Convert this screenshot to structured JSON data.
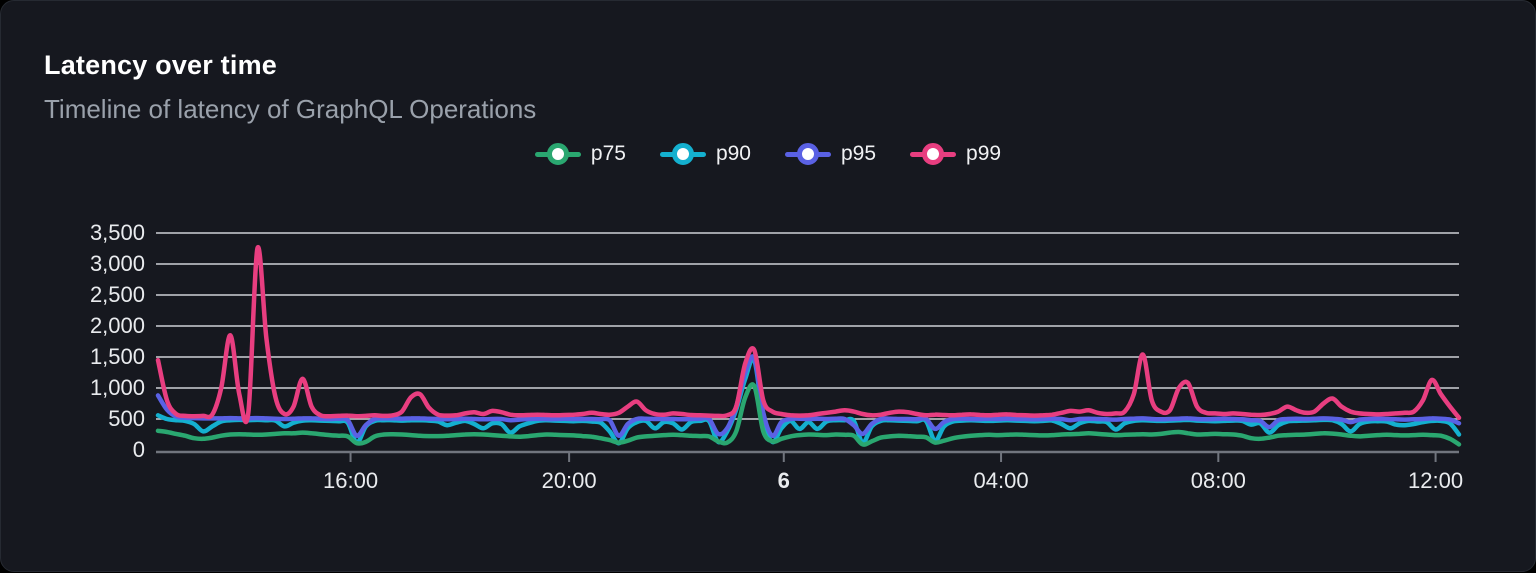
{
  "card": {
    "title": "Latency over time",
    "subtitle": "Timeline of latency of GraphQL Operations"
  },
  "colors": {
    "background": "#000000",
    "card_background": "#16181f",
    "card_border": "#262a32",
    "title_text": "#ffffff",
    "subtitle_text": "#9aa1ab",
    "gridline": "#cdd0d6",
    "axis_line": "#71757e",
    "axis_label_text": "#e9ebee",
    "p75": "#2aa770",
    "p90": "#14b0cf",
    "p95": "#5a61e4",
    "p99": "#e83e80"
  },
  "chart_data": {
    "type": "line",
    "title": "Latency over time",
    "subtitle": "Timeline of latency of GraphQL Operations",
    "grid": true,
    "legend_position": "top-center",
    "x_axis": {
      "span_hours": 24,
      "sample_interval_minutes": 10,
      "ticks": [
        {
          "label": "16:00",
          "pos": 0.148,
          "bold": false
        },
        {
          "label": "20:00",
          "pos": 0.316,
          "bold": false
        },
        {
          "label": "6",
          "pos": 0.481,
          "bold": true
        },
        {
          "label": "04:00",
          "pos": 0.648,
          "bold": false
        },
        {
          "label": "08:00",
          "pos": 0.815,
          "bold": false
        },
        {
          "label": "12:00",
          "pos": 0.982,
          "bold": false
        }
      ]
    },
    "y_axis": {
      "min": 0,
      "max": 3500,
      "tick_step": 500,
      "tick_values": [
        0,
        500,
        1000,
        1500,
        2000,
        2500,
        3000,
        3500
      ],
      "tick_labels": [
        "0",
        "500",
        "1,000",
        "1,500",
        "2,000",
        "2,500",
        "3,000",
        "3,500"
      ]
    },
    "series": [
      {
        "name": "p75",
        "color": "#2aa770",
        "z": 2,
        "values": [
          310,
          290,
          260,
          230,
          190,
          180,
          200,
          230,
          250,
          255,
          250,
          245,
          250,
          260,
          270,
          270,
          280,
          270,
          255,
          240,
          230,
          220,
          110,
          130,
          220,
          250,
          255,
          250,
          240,
          230,
          225,
          225,
          230,
          240,
          250,
          255,
          250,
          240,
          230,
          220,
          215,
          225,
          240,
          250,
          245,
          240,
          235,
          225,
          215,
          190,
          160,
          120,
          150,
          200,
          220,
          230,
          240,
          245,
          240,
          230,
          225,
          220,
          140,
          120,
          300,
          850,
          1030,
          300,
          140,
          180,
          220,
          240,
          250,
          245,
          240,
          250,
          245,
          230,
          90,
          140,
          200,
          220,
          230,
          225,
          215,
          205,
          120,
          150,
          190,
          215,
          230,
          240,
          245,
          240,
          245,
          250,
          245,
          240,
          235,
          240,
          250,
          255,
          260,
          270,
          260,
          250,
          240,
          245,
          250,
          255,
          250,
          260,
          280,
          290,
          270,
          250,
          255,
          260,
          255,
          250,
          230,
          190,
          180,
          200,
          230,
          240,
          245,
          250,
          260,
          270,
          265,
          250,
          230,
          220,
          230,
          240,
          245,
          240,
          235,
          240,
          245,
          240,
          230,
          180,
          90
        ]
      },
      {
        "name": "p90",
        "color": "#14b0cf",
        "z": 0,
        "values": [
          560,
          500,
          480,
          470,
          420,
          300,
          380,
          460,
          480,
          485,
          480,
          485,
          480,
          475,
          380,
          440,
          475,
          480,
          475,
          470,
          465,
          440,
          120,
          380,
          470,
          480,
          480,
          475,
          480,
          480,
          475,
          460,
          400,
          440,
          470,
          420,
          350,
          430,
          420,
          280,
          380,
          430,
          470,
          480,
          475,
          470,
          465,
          470,
          460,
          440,
          300,
          110,
          350,
          450,
          470,
          350,
          450,
          430,
          330,
          450,
          470,
          465,
          130,
          300,
          650,
          1150,
          1450,
          500,
          130,
          350,
          470,
          340,
          450,
          340,
          460,
          480,
          480,
          470,
          120,
          380,
          470,
          480,
          475,
          470,
          465,
          470,
          150,
          380,
          460,
          475,
          480,
          475,
          470,
          475,
          480,
          475,
          470,
          465,
          470,
          475,
          420,
          350,
          430,
          470,
          460,
          450,
          330,
          430,
          470,
          480,
          475,
          470,
          475,
          480,
          485,
          475,
          470,
          465,
          470,
          475,
          470,
          410,
          430,
          280,
          400,
          460,
          470,
          475,
          480,
          485,
          480,
          420,
          300,
          420,
          460,
          465,
          460,
          410,
          400,
          420,
          450,
          470,
          470,
          430,
          250
        ]
      },
      {
        "name": "p95",
        "color": "#5a61e4",
        "z": 1,
        "values": [
          880,
          650,
          540,
          520,
          515,
          510,
          510,
          510,
          515,
          510,
          510,
          515,
          510,
          505,
          500,
          505,
          510,
          510,
          505,
          500,
          505,
          480,
          230,
          400,
          500,
          510,
          510,
          505,
          510,
          510,
          505,
          500,
          495,
          500,
          505,
          500,
          495,
          500,
          500,
          480,
          490,
          500,
          505,
          500,
          500,
          505,
          500,
          500,
          500,
          495,
          480,
          230,
          420,
          500,
          505,
          500,
          500,
          500,
          495,
          500,
          505,
          500,
          260,
          350,
          700,
          1250,
          1480,
          600,
          230,
          450,
          500,
          505,
          500,
          505,
          500,
          505,
          500,
          400,
          260,
          420,
          500,
          505,
          500,
          500,
          495,
          500,
          340,
          450,
          500,
          505,
          500,
          500,
          505,
          500,
          505,
          500,
          500,
          495,
          500,
          505,
          500,
          480,
          500,
          505,
          500,
          495,
          490,
          500,
          505,
          510,
          500,
          495,
          500,
          505,
          510,
          500,
          495,
          500,
          505,
          500,
          495,
          480,
          470,
          370,
          480,
          500,
          505,
          500,
          505,
          510,
          505,
          490,
          450,
          490,
          500,
          505,
          500,
          495,
          490,
          495,
          500,
          510,
          505,
          490,
          430
        ]
      },
      {
        "name": "p99",
        "color": "#e83e80",
        "z": 3,
        "values": [
          1450,
          800,
          580,
          550,
          545,
          550,
          570,
          1000,
          1850,
          900,
          600,
          3250,
          1800,
          850,
          580,
          700,
          1150,
          700,
          560,
          545,
          550,
          555,
          545,
          550,
          560,
          550,
          560,
          620,
          850,
          900,
          680,
          570,
          555,
          560,
          590,
          610,
          580,
          630,
          610,
          570,
          560,
          565,
          570,
          565,
          560,
          565,
          570,
          580,
          600,
          580,
          570,
          600,
          700,
          780,
          640,
          580,
          570,
          590,
          580,
          565,
          560,
          555,
          550,
          560,
          700,
          1400,
          1610,
          800,
          620,
          580,
          560,
          555,
          560,
          580,
          600,
          620,
          640,
          620,
          580,
          560,
          570,
          600,
          620,
          610,
          580,
          560,
          570,
          565,
          560,
          570,
          575,
          565,
          560,
          570,
          575,
          565,
          560,
          555,
          560,
          570,
          600,
          630,
          620,
          640,
          600,
          580,
          590,
          620,
          900,
          1540,
          800,
          620,
          640,
          1000,
          1080,
          700,
          600,
          590,
          580,
          590,
          580,
          570,
          565,
          580,
          620,
          700,
          640,
          600,
          620,
          750,
          830,
          700,
          620,
          590,
          580,
          575,
          580,
          590,
          600,
          620,
          800,
          1130,
          900,
          700,
          520
        ]
      }
    ]
  }
}
